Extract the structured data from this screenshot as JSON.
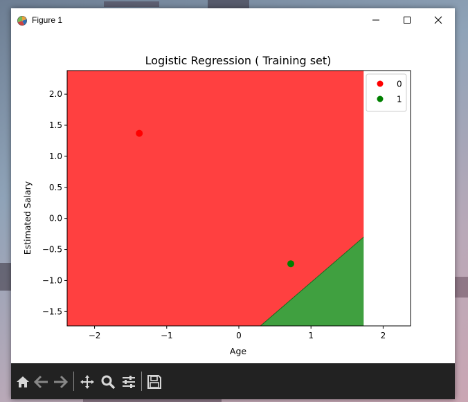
{
  "window": {
    "title": "Figure 1",
    "controls": [
      "minimize",
      "maximize",
      "close"
    ]
  },
  "toolbar": {
    "buttons": [
      "home-icon",
      "back-arrow-icon",
      "forward-arrow-icon",
      "pan-icon",
      "zoom-icon",
      "configure-subplots-icon",
      "save-icon"
    ]
  },
  "chart_data": {
    "type": "scatter",
    "title": "Logistic Regression ( Training set)",
    "xlabel": "Age",
    "ylabel": "Estimated Salary",
    "xlim": [
      -2.38,
      2.38
    ],
    "ylim": [
      -1.73,
      2.38
    ],
    "xticks": [
      -2,
      -1,
      0,
      1,
      2
    ],
    "xtick_labels": [
      "−2",
      "−1",
      "0",
      "1",
      "2"
    ],
    "yticks": [
      2.0,
      1.5,
      1.0,
      0.5,
      0.0,
      -0.5,
      -1.0,
      -1.5
    ],
    "ytick_labels": [
      "2.0",
      "1.5",
      "1.0",
      "0.5",
      "0.0",
      "−0.5",
      "−1.0",
      "−1.5"
    ],
    "region_extent_x": [
      -2.38,
      1.73
    ],
    "regions": [
      {
        "class": "0",
        "color": "#ff4040",
        "polygon": [
          [
            -2.38,
            -1.73
          ],
          [
            -2.38,
            2.38
          ],
          [
            1.73,
            2.38
          ],
          [
            1.73,
            -0.3
          ],
          [
            0.3,
            -1.73
          ]
        ]
      },
      {
        "class": "1",
        "color": "#40a040",
        "polygon": [
          [
            0.3,
            -1.73
          ],
          [
            1.73,
            -0.3
          ],
          [
            1.73,
            -1.73
          ]
        ]
      }
    ],
    "boundary": [
      [
        0.3,
        -1.73
      ],
      [
        1.73,
        -0.3
      ]
    ],
    "series": [
      {
        "name": "0",
        "color": "#ff0000",
        "points": [
          [
            -1.38,
            1.37
          ]
        ]
      },
      {
        "name": "1",
        "color": "#008000",
        "points": [
          [
            0.72,
            -0.73
          ]
        ]
      }
    ],
    "legend": {
      "placement": "top-right",
      "entries": [
        "0",
        "1"
      ]
    },
    "grid": false
  }
}
